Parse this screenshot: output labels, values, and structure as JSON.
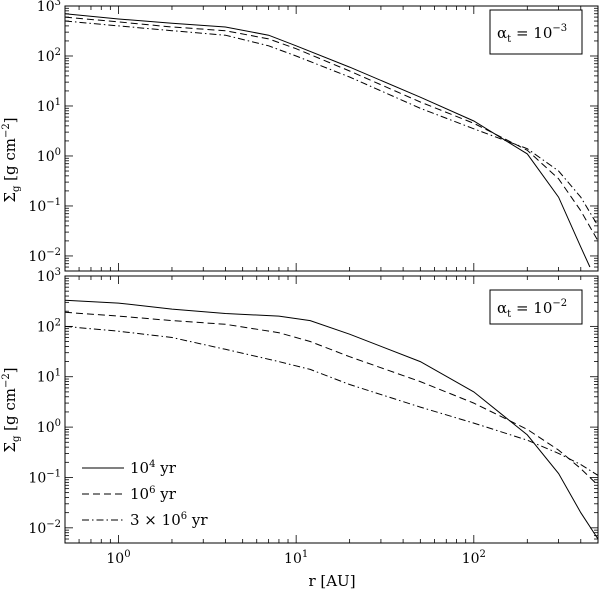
{
  "chart_data": [
    {
      "type": "line",
      "panel": "top",
      "x_scale": "log",
      "y_scale": "log",
      "xlim": [
        0.5,
        500
      ],
      "ylim": [
        0.005,
        1000
      ],
      "annotation": {
        "text_main": "αt = 10",
        "exponent": "−3",
        "sub": "t"
      },
      "ylabel": "Σg [g cm−2]",
      "y_ticks": [
        {
          "value": 1000,
          "base": "10",
          "exp": "3"
        },
        {
          "value": 100,
          "base": "10",
          "exp": "2"
        },
        {
          "value": 10,
          "base": "10",
          "exp": "1"
        },
        {
          "value": 1,
          "base": "10",
          "exp": "0"
        },
        {
          "value": 0.1,
          "base": "10",
          "exp": "−1"
        },
        {
          "value": 0.01,
          "base": "10",
          "exp": "−2"
        }
      ],
      "series": [
        {
          "name": "10^4 yr",
          "style": "solid",
          "x": [
            0.5,
            1,
            2,
            4,
            7,
            10,
            20,
            50,
            100,
            200,
            300,
            400,
            450
          ],
          "y": [
            700,
            550,
            450,
            380,
            260,
            160,
            60,
            15,
            5,
            1.1,
            0.15,
            0.015,
            0.006
          ]
        },
        {
          "name": "10^6 yr",
          "style": "dashed",
          "x": [
            0.5,
            1,
            2,
            4,
            7,
            10,
            20,
            50,
            100,
            200,
            300,
            400,
            500
          ],
          "y": [
            600,
            480,
            380,
            320,
            220,
            140,
            50,
            12,
            4.5,
            1.3,
            0.35,
            0.08,
            0.02
          ]
        },
        {
          "name": "3 × 10^6 yr",
          "style": "dashdot",
          "x": [
            0.5,
            1,
            2,
            4,
            7,
            10,
            20,
            50,
            100,
            200,
            300,
            400,
            500
          ],
          "y": [
            500,
            400,
            320,
            260,
            160,
            100,
            38,
            9,
            3.5,
            1.4,
            0.5,
            0.15,
            0.04
          ]
        }
      ]
    },
    {
      "type": "line",
      "panel": "bottom",
      "x_scale": "log",
      "y_scale": "log",
      "xlim": [
        0.5,
        500
      ],
      "ylim": [
        0.005,
        1000
      ],
      "annotation": {
        "text_main": "αt = 10",
        "exponent": "−2",
        "sub": "t"
      },
      "xlabel": "r [AU]",
      "ylabel": "Σg [g cm−2]",
      "x_ticks": [
        {
          "value": 1,
          "base": "10",
          "exp": "0"
        },
        {
          "value": 10,
          "base": "10",
          "exp": "1"
        },
        {
          "value": 100,
          "base": "10",
          "exp": "2"
        }
      ],
      "y_ticks": [
        {
          "value": 1000,
          "base": "10",
          "exp": "3"
        },
        {
          "value": 100,
          "base": "10",
          "exp": "2"
        },
        {
          "value": 10,
          "base": "10",
          "exp": "1"
        },
        {
          "value": 1,
          "base": "10",
          "exp": "0"
        },
        {
          "value": 0.1,
          "base": "10",
          "exp": "−1"
        },
        {
          "value": 0.01,
          "base": "10",
          "exp": "−2"
        }
      ],
      "legend": {
        "placement": "lower-left",
        "entries": [
          {
            "base": "10",
            "exp": "4",
            "suffix": " yr",
            "style": "solid"
          },
          {
            "base": "10",
            "exp": "6",
            "suffix": " yr",
            "style": "dashed"
          },
          {
            "base": "3 × 10",
            "exp": "6",
            "suffix": " yr",
            "style": "dashdot"
          }
        ]
      },
      "series": [
        {
          "name": "10^4 yr",
          "style": "solid",
          "x": [
            0.5,
            1,
            2,
            4,
            8,
            12,
            20,
            50,
            100,
            200,
            300,
            400,
            500
          ],
          "y": [
            330,
            290,
            220,
            180,
            160,
            130,
            70,
            20,
            5,
            0.7,
            0.12,
            0.02,
            0.006
          ]
        },
        {
          "name": "10^6 yr",
          "style": "dashed",
          "x": [
            0.5,
            1,
            2,
            4,
            8,
            12,
            20,
            50,
            100,
            200,
            300,
            400,
            500
          ],
          "y": [
            190,
            160,
            130,
            110,
            75,
            50,
            25,
            8,
            3,
            0.9,
            0.35,
            0.15,
            0.07
          ]
        },
        {
          "name": "3 × 10^6 yr",
          "style": "dashdot",
          "x": [
            0.5,
            1,
            2,
            4,
            8,
            12,
            20,
            50,
            100,
            200,
            300,
            400,
            500
          ],
          "y": [
            100,
            80,
            60,
            35,
            20,
            14,
            7,
            2.5,
            1.2,
            0.55,
            0.3,
            0.18,
            0.11
          ]
        }
      ]
    }
  ]
}
